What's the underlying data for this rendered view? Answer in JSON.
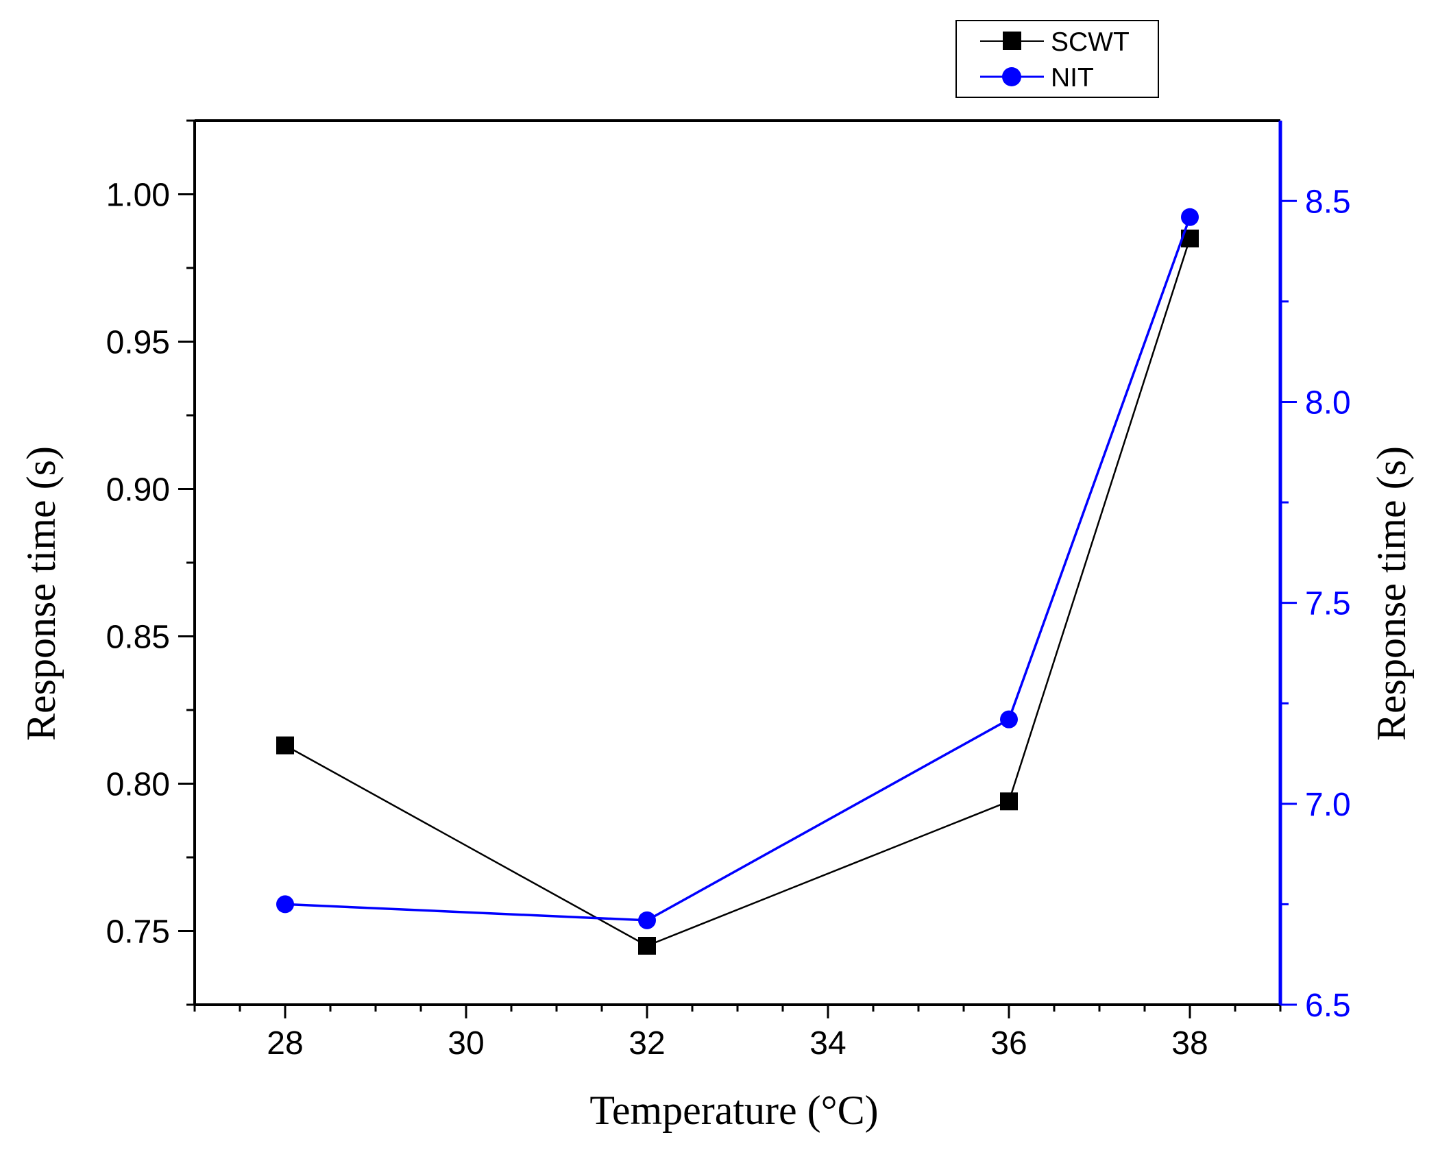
{
  "chart_data": {
    "type": "line",
    "title": "",
    "xlabel": "Temperature (°C)",
    "ylabel_left": "Response time (s)",
    "ylabel_right": "Response time (s)",
    "xlim": [
      27,
      39
    ],
    "ylim_left": [
      0.725,
      1.025
    ],
    "ylim_right": [
      6.5,
      8.7
    ],
    "x_ticks": [
      28,
      30,
      32,
      34,
      36,
      38
    ],
    "x_tick_labels": [
      "28",
      "30",
      "32",
      "34",
      "36",
      "38"
    ],
    "y_left_ticks": [
      0.75,
      0.8,
      0.85,
      0.9,
      0.95,
      1.0
    ],
    "y_left_tick_labels": [
      "0.75",
      "0.80",
      "0.85",
      "0.90",
      "0.95",
      "1.00"
    ],
    "y_right_ticks": [
      6.5,
      7.0,
      7.5,
      8.0,
      8.5
    ],
    "y_right_tick_labels": [
      "6.5",
      "7.0",
      "7.5",
      "8.0",
      "8.5"
    ],
    "legend_position": "top-right, above plot",
    "series": [
      {
        "name": "SCWT",
        "axis": "left",
        "color": "#000000",
        "marker": "square",
        "x": [
          28,
          32,
          36,
          38
        ],
        "values": [
          0.813,
          0.745,
          0.794,
          0.985
        ]
      },
      {
        "name": "NIT",
        "axis": "right",
        "color": "#0000ff",
        "marker": "circle",
        "x": [
          28,
          32,
          36,
          38
        ],
        "values": [
          6.75,
          6.71,
          7.21,
          8.46
        ]
      }
    ]
  }
}
